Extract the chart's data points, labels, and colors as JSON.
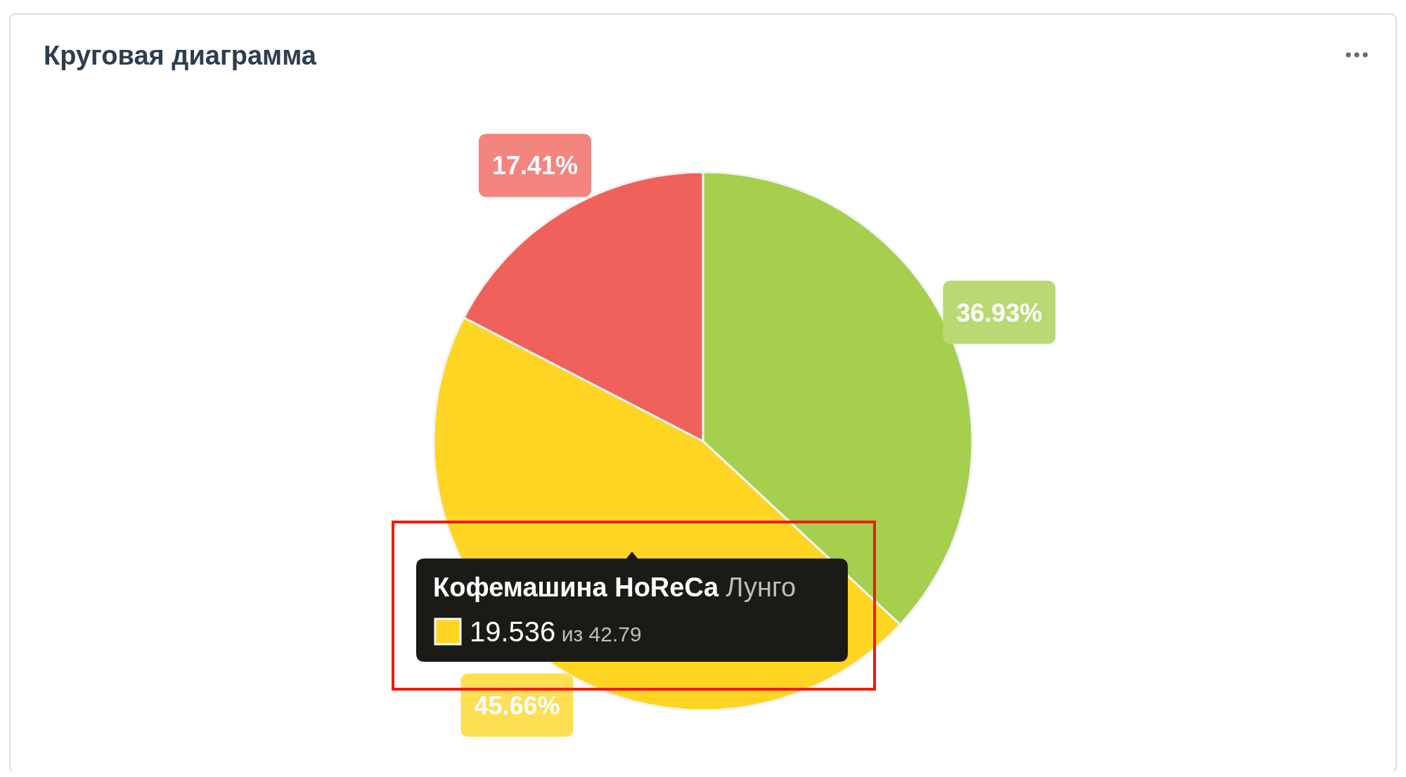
{
  "chart_data": {
    "type": "pie",
    "title": "Круговая диаграмма",
    "categories": [
      null,
      null,
      null
    ],
    "values": [
      36.93,
      45.66,
      17.41
    ],
    "colors": [
      "#a5cf4c",
      "#fed523",
      "#ef615a"
    ],
    "value_labels": [
      "36.93%",
      "45.66%",
      "17.41%"
    ],
    "annotations": [
      "Кофемашина HoReCa",
      "Лунго",
      "19.536",
      "из 42.79"
    ]
  }
}
